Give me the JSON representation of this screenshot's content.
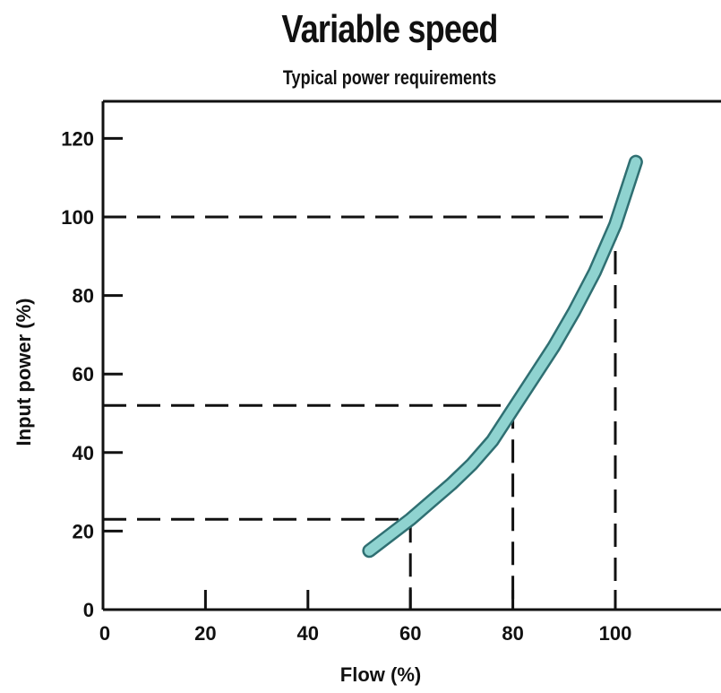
{
  "chart_data": {
    "type": "line",
    "title": "Variable speed",
    "subtitle": "Typical power requirements",
    "xlabel": "Flow (%)",
    "ylabel": "Input power (%)",
    "xlim": [
      0,
      120
    ],
    "ylim": [
      0,
      130
    ],
    "xticks": [
      0,
      20,
      40,
      60,
      80,
      100
    ],
    "yticks": [
      0,
      20,
      40,
      60,
      80,
      100,
      120
    ],
    "grid": false,
    "series": [
      {
        "x": [
          52,
          56,
          60,
          64,
          68,
          72,
          76,
          80,
          84,
          88,
          92,
          96,
          100,
          104
        ],
        "y": [
          15,
          19,
          23,
          27.5,
          32,
          37,
          43,
          51,
          59,
          67,
          76,
          86,
          98,
          114
        ],
        "color": "#8fd3d0"
      }
    ],
    "reference_lines": [
      {
        "x": 60,
        "y": 23
      },
      {
        "x": 80,
        "y": 52
      },
      {
        "x": 100,
        "y": 100
      }
    ]
  },
  "colors": {
    "curve_fill": "#8fd3d0",
    "curve_stroke": "#2f6f72",
    "axis": "#111111"
  }
}
